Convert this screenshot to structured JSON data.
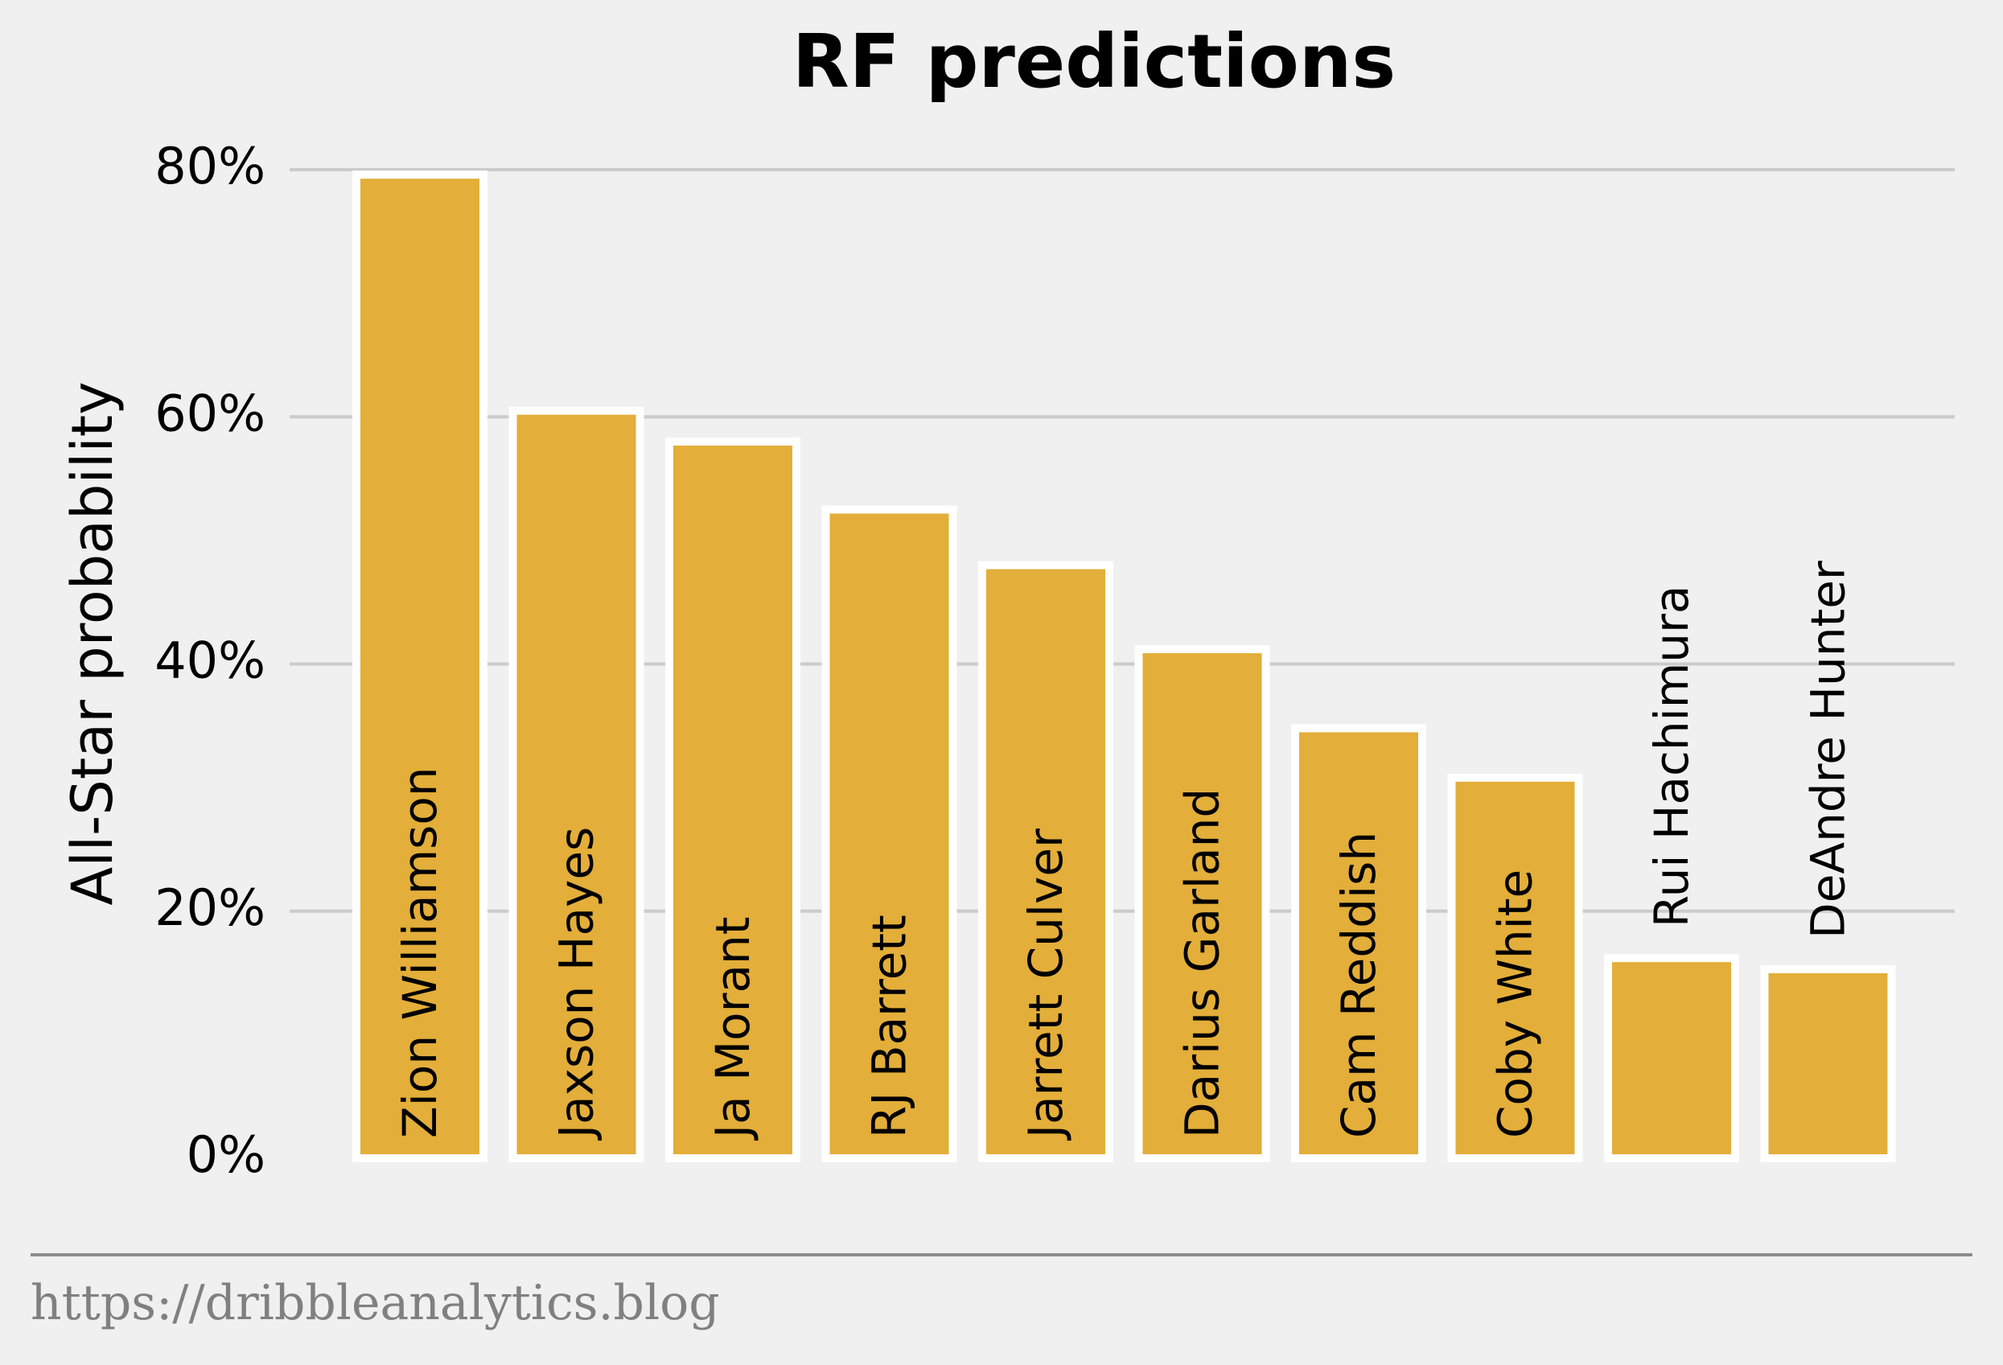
{
  "chart_data": {
    "type": "bar",
    "title": "RF predictions",
    "xlabel": "",
    "ylabel": "All-Star probability",
    "ylim": [
      0,
      80
    ],
    "yticks": [
      "0%",
      "20%",
      "40%",
      "60%",
      "80%"
    ],
    "ytick_values": [
      0,
      20,
      40,
      60,
      80
    ],
    "grid": true,
    "bar_color": "#e3ae39",
    "categories": [
      "Zion Williamson",
      "Jaxson Hayes",
      "Ja Morant",
      "RJ Barrett",
      "Jarrett Culver",
      "Darius Garland",
      "Cam Reddish",
      "Coby White",
      "Rui Hachimura",
      "DeAndre Hunter"
    ],
    "values": [
      79.6,
      60.5,
      58.0,
      52.5,
      48.0,
      41.2,
      34.8,
      30.8,
      16.2,
      15.3
    ]
  },
  "footer": {
    "source": "https://dribbleanalytics.blog"
  }
}
